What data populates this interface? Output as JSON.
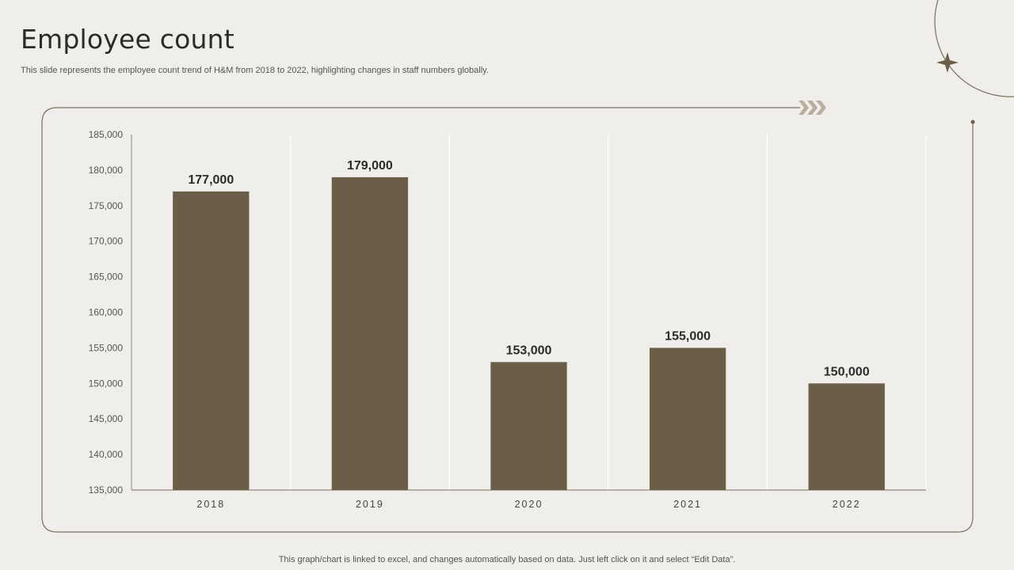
{
  "slide": {
    "title": "Employee count",
    "subtitle": "This slide represents the employee count trend of H&M from 2018 to 2022, highlighting changes in staff numbers globally.",
    "footer": "This graph/chart is linked to excel,  and changes automatically based on data. Just left click on it and select “Edit Data”."
  },
  "colors": {
    "bar": "#6b5e48",
    "frame": "#7a715f",
    "accent_arrows": "#b9ae9c",
    "background": "#efeeea"
  },
  "chart_data": {
    "type": "bar",
    "categories": [
      "2018",
      "2019",
      "2020",
      "2021",
      "2022"
    ],
    "values": [
      177000,
      179000,
      153000,
      155000,
      150000
    ],
    "data_labels": [
      "177,000",
      "179,000",
      "153,000",
      "155,000",
      "150,000"
    ],
    "ylim": [
      135000,
      185000
    ],
    "y_ticks": [
      "135,000",
      "140,000",
      "145,000",
      "150,000",
      "155,000",
      "160,000",
      "165,000",
      "170,000",
      "175,000",
      "180,000",
      "185,000"
    ],
    "xlabel": "",
    "ylabel": "",
    "grid": "vertical",
    "legend": "none"
  }
}
